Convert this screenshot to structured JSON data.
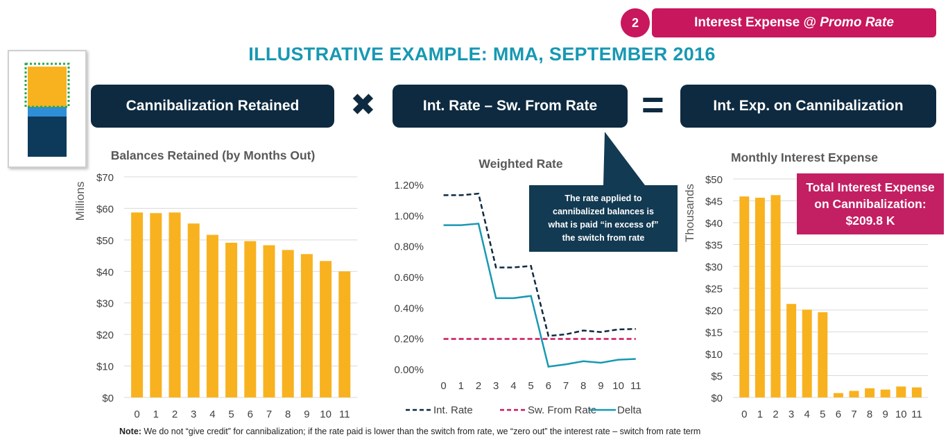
{
  "header": {
    "step_number": "2",
    "topic_prefix": "Interest Expense @ ",
    "topic_italic": "Promo Rate",
    "title": "ILLUSTRATIVE EXAMPLE: MMA, SEPTEMBER 2016"
  },
  "equation": {
    "term1": "Cannibalization Retained",
    "operator1": "✖",
    "term2": "Int. Rate – Sw. From Rate",
    "operator2": "=",
    "result": "Int. Exp. on Cannibalization"
  },
  "thumbnail": {
    "colors": {
      "top": "#f8b21f",
      "mid": "#2e8fd8",
      "bottom": "#0d3a5a",
      "outline": "#2aa84a"
    }
  },
  "callout": {
    "text": "The rate applied to\ncannibalized balances is\nwhat is paid “in excess of”\nthe switch from rate"
  },
  "total_box": {
    "text": "Total Interest Expense\non Cannibalization:\n$209.8 K"
  },
  "note": {
    "label": "Note:",
    "text": " We do not “give credit” for cannibalization; if the rate paid is lower than the switch from rate, we “zero out” the interest rate – switch from rate term"
  },
  "colors": {
    "bar": "#f8b21f",
    "navy": "#0d2a40",
    "teal": "#1798b3",
    "magenta": "#c8175d"
  },
  "chart_data": [
    {
      "type": "bar",
      "title": "Balances Retained (by Months Out)",
      "ylabel": "Millions",
      "categories": [
        "0",
        "1",
        "2",
        "3",
        "4",
        "5",
        "6",
        "7",
        "8",
        "9",
        "10",
        "11"
      ],
      "values": [
        58.7,
        58.5,
        58.7,
        55.2,
        51.6,
        49.1,
        49.6,
        48.3,
        46.8,
        45.5,
        43.3,
        40.0
      ],
      "ylim": [
        0,
        70
      ],
      "yticks": [
        "$0",
        "$10",
        "$20",
        "$30",
        "$40",
        "$50",
        "$60",
        "$70"
      ],
      "grid": true
    },
    {
      "type": "line",
      "title": "Weighted Rate",
      "categories": [
        "0",
        "1",
        "2",
        "3",
        "4",
        "5",
        "6",
        "7",
        "8",
        "9",
        "10",
        "11"
      ],
      "ylim": [
        0,
        1.2
      ],
      "yticks": [
        "0.00%",
        "0.20%",
        "0.40%",
        "0.60%",
        "0.80%",
        "1.00%",
        "1.20%"
      ],
      "series": [
        {
          "name": "Int. Rate",
          "values": [
            1.135,
            1.135,
            1.145,
            0.665,
            0.665,
            0.675,
            0.22,
            0.23,
            0.255,
            0.245,
            0.262,
            0.265
          ],
          "color": "#0d2a40",
          "dash": "dashed"
        },
        {
          "name": "Sw. From Rate",
          "values": [
            0.2,
            0.2,
            0.2,
            0.2,
            0.2,
            0.2,
            0.2,
            0.2,
            0.2,
            0.2,
            0.2,
            0.2
          ],
          "color": "#c8175d",
          "dash": "dashed"
        },
        {
          "name": "Delta",
          "values": [
            0.94,
            0.94,
            0.95,
            0.465,
            0.465,
            0.48,
            0.02,
            0.035,
            0.055,
            0.045,
            0.065,
            0.07
          ],
          "color": "#1798b3",
          "dash": "solid"
        }
      ],
      "legend": "bottom"
    },
    {
      "type": "bar",
      "title": "Monthly Interest Expense",
      "ylabel": "Thousands",
      "categories": [
        "0",
        "1",
        "2",
        "3",
        "4",
        "5",
        "6",
        "7",
        "8",
        "9",
        "10",
        "11"
      ],
      "values": [
        46.0,
        45.7,
        46.3,
        21.4,
        20.1,
        19.5,
        1.0,
        1.5,
        2.1,
        1.8,
        2.5,
        2.3
      ],
      "ylim": [
        0,
        50
      ],
      "yticks": [
        "$0",
        "$5",
        "$10",
        "$15",
        "$20",
        "$25",
        "$30",
        "$35",
        "$40",
        "$45",
        "$50"
      ],
      "grid": true
    }
  ]
}
